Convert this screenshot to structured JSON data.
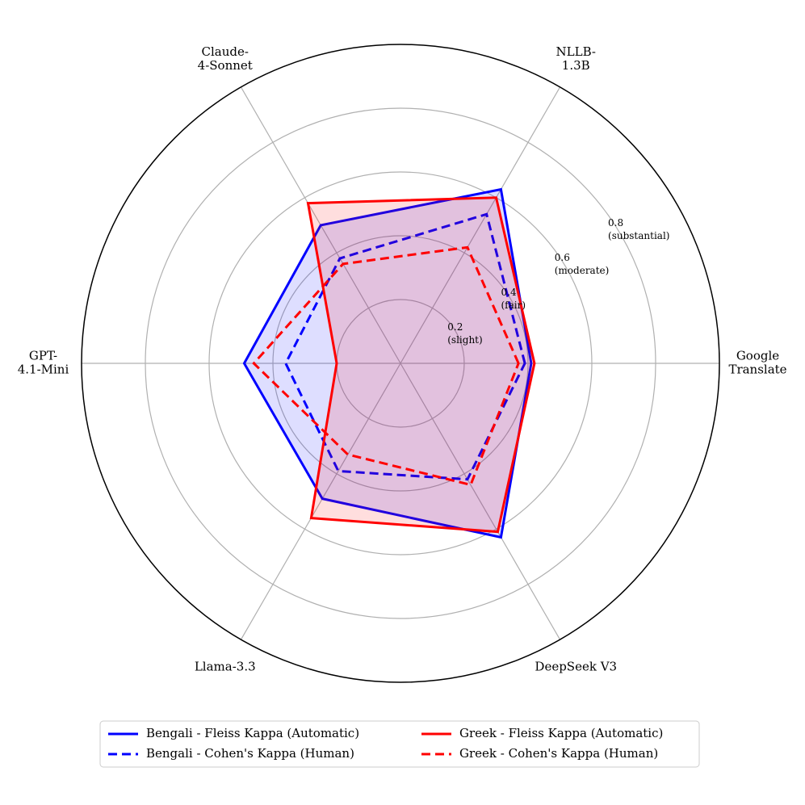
{
  "chart_data": {
    "type": "radar",
    "categories": [
      "Google\nTranslate",
      "NLLB-\n1.3B",
      "Claude-\n4-Sonnet",
      "GPT-\n4.1-Mini",
      "Llama-3.3",
      "DeepSeek V3"
    ],
    "series": [
      {
        "name": "Bengali - Fleiss Kappa (Automatic)",
        "color": "#0000ff",
        "dash": "solid",
        "fill": true,
        "values": [
          0.41,
          0.63,
          0.5,
          0.49,
          0.49,
          0.63
        ]
      },
      {
        "name": "Bengali - Cohen's Kappa (Human)",
        "color": "#0000ff",
        "dash": "dashed",
        "fill": false,
        "values": [
          0.39,
          0.54,
          0.38,
          0.36,
          0.39,
          0.42
        ]
      },
      {
        "name": "Greek - Fleiss Kappa (Automatic)",
        "color": "#ff0000",
        "dash": "solid",
        "fill": true,
        "values": [
          0.42,
          0.6,
          0.58,
          0.2,
          0.56,
          0.61
        ]
      },
      {
        "name": "Greek - Cohen's Kappa (Human)",
        "color": "#ff0000",
        "dash": "dashed",
        "fill": false,
        "values": [
          0.37,
          0.42,
          0.36,
          0.46,
          0.33,
          0.44
        ]
      }
    ],
    "rlim": [
      0,
      1.0
    ],
    "rticks": [
      {
        "value": 0.2,
        "label": "0.2\n(slight)"
      },
      {
        "value": 0.4,
        "label": "0.4\n(fair)"
      },
      {
        "value": 0.6,
        "label": "0.6\n(moderate)"
      },
      {
        "value": 0.8,
        "label": "0.8\n(substantial)"
      }
    ],
    "grid": true
  }
}
